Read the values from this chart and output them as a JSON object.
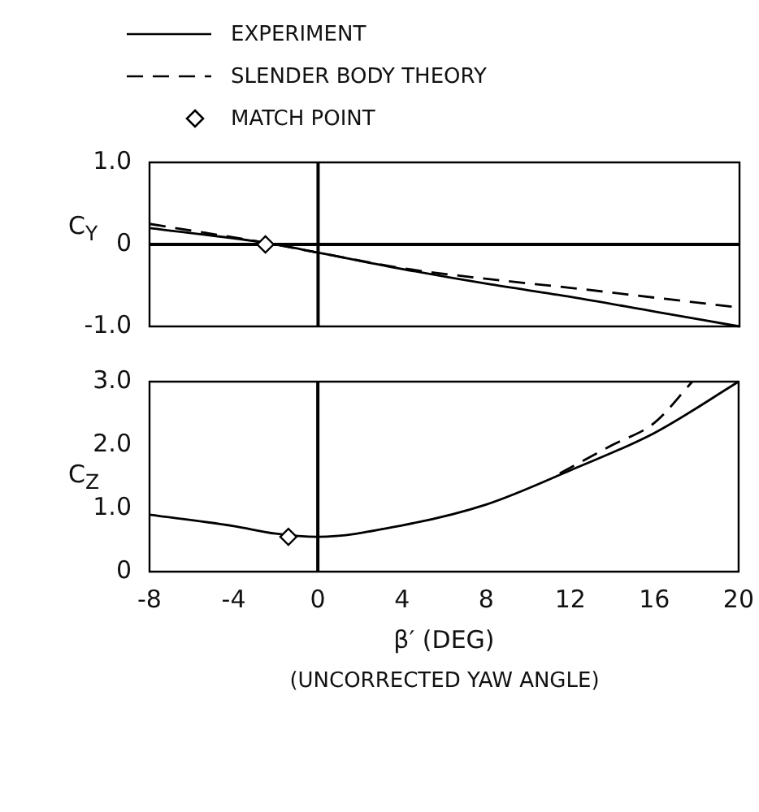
{
  "chart_data": [
    {
      "type": "line",
      "ylabel": "C$_{Y}$",
      "legend": "top",
      "grid": false,
      "tick_labels": "y",
      "xlim": [
        -8,
        20
      ],
      "xticks": [
        -8,
        -4,
        0,
        4,
        8,
        12,
        16,
        20
      ],
      "ylim": [
        -1,
        1
      ],
      "yticks": [
        {
          "value": -1,
          "label": "-1.0"
        },
        0,
        {
          "value": 1,
          "label": "1.0"
        }
      ],
      "ref_lines": [
        {
          "axis": "y",
          "value": 0,
          "color": "#000000"
        },
        {
          "axis": "x",
          "value": 0,
          "color": "#000000"
        }
      ],
      "series": [
        {
          "name": "EXPERIMENT",
          "color": "#000000",
          "line_style": "solid",
          "marker": "none",
          "x": [
            -8,
            -2.5,
            0,
            4,
            8,
            12,
            16,
            20
          ],
          "values": [
            0.2,
            0.02,
            -0.1,
            -0.3,
            -0.48,
            -0.64,
            -0.82,
            -1.0
          ]
        },
        {
          "name": "SLENDER BODY THEORY",
          "color": "#000000",
          "line_style": "dashed",
          "marker": "none",
          "x": [
            -8,
            -2.5,
            0,
            4,
            8,
            12,
            16,
            20
          ],
          "values": [
            0.25,
            0.02,
            -0.1,
            -0.29,
            -0.42,
            -0.53,
            -0.65,
            -0.77
          ]
        },
        {
          "name": "MATCH POINT",
          "type": "scatter",
          "color": "#000000",
          "marker": "diamond",
          "x": [
            -2.5
          ],
          "values": [
            0.0
          ]
        }
      ]
    },
    {
      "type": "line",
      "ylabel": "C$_{Z}$",
      "xlabel": "β′ (DEG)",
      "legend": false,
      "grid": false,
      "xlim": [
        -8,
        20
      ],
      "xticks": [
        -8,
        -4,
        0,
        4,
        8,
        12,
        16,
        20
      ],
      "ylim": [
        0,
        3
      ],
      "yticks": [
        0,
        {
          "value": 1,
          "label": "1.0"
        },
        {
          "value": 2,
          "label": "2.0"
        },
        {
          "value": 3,
          "label": "3.0"
        }
      ],
      "annotations": [
        "(UNCORRECTED YAW ANGLE)"
      ],
      "ref_lines": [
        {
          "axis": "x",
          "value": 0,
          "color": "#000000"
        }
      ],
      "series": [
        {
          "color": "#000000",
          "line_style": "solid",
          "marker": "none",
          "x": [
            -8,
            -4,
            -2,
            0,
            4,
            8,
            12,
            16,
            20
          ],
          "values": [
            0.9,
            0.72,
            0.6,
            0.55,
            0.73,
            1.06,
            1.6,
            2.19,
            3.0
          ]
        },
        {
          "color": "#000000",
          "line_style": "dashed",
          "marker": "none",
          "x": [
            11.5,
            14,
            16,
            17.8
          ],
          "values": [
            1.55,
            2.0,
            2.35,
            3.0
          ]
        },
        {
          "type": "scatter",
          "color": "#000000",
          "marker": "diamond",
          "x": [
            -1.4
          ],
          "values": [
            0.55
          ]
        }
      ]
    }
  ]
}
